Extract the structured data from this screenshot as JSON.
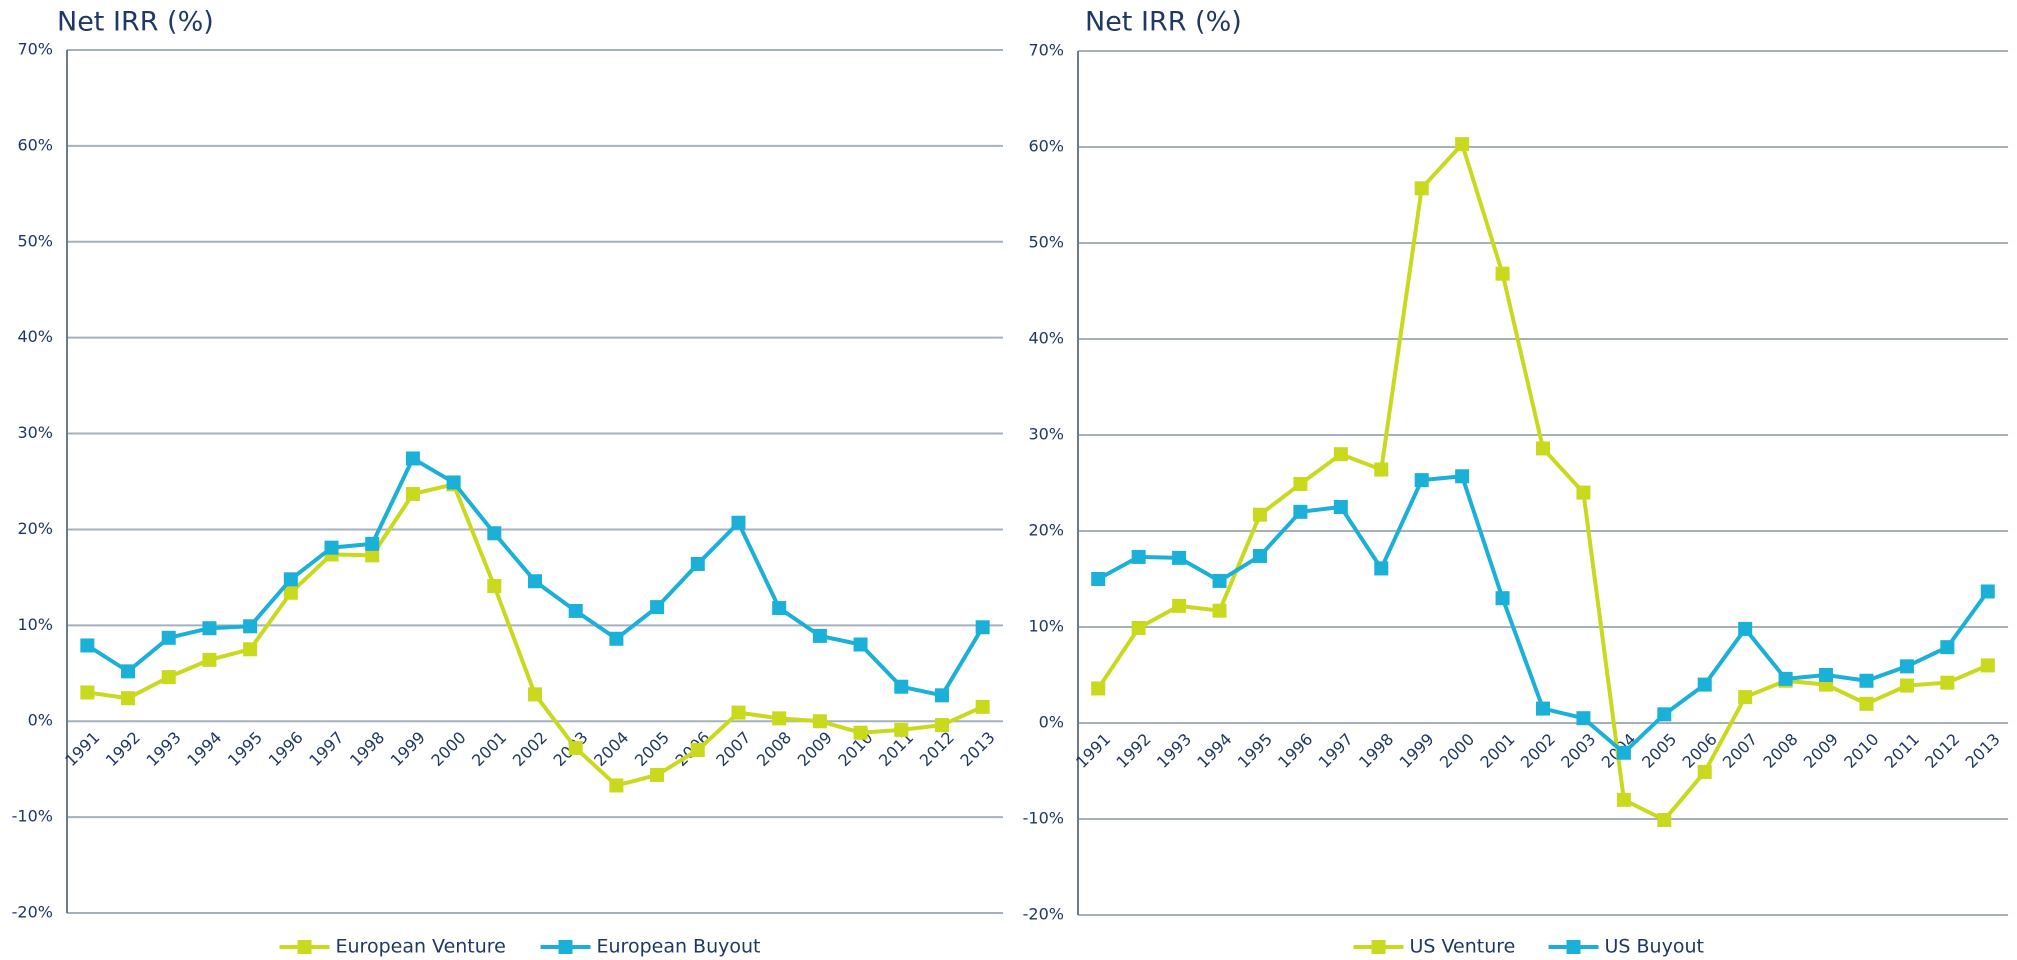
{
  "chart_data": [
    {
      "type": "line",
      "title": "Net IRR (%)",
      "categories": [
        "1991",
        "1992",
        "1993",
        "1994",
        "1995",
        "1996",
        "1997",
        "1998",
        "1999",
        "2000",
        "2001",
        "2002",
        "2003",
        "2004",
        "2005",
        "2006",
        "2007",
        "2008",
        "2009",
        "2010",
        "2011",
        "2012",
        "2013"
      ],
      "series": [
        {
          "name": "European Venture",
          "color": "#c8d91e",
          "values": [
            3.0,
            2.4,
            4.6,
            6.4,
            7.5,
            13.4,
            17.4,
            17.3,
            23.7,
            24.7,
            14.1,
            2.8,
            -2.8,
            -6.7,
            -5.6,
            -3.0,
            0.9,
            0.3,
            0.0,
            -1.2,
            -0.9,
            -0.4,
            1.5
          ]
        },
        {
          "name": "European Buyout",
          "color": "#1ab0d8",
          "values": [
            7.9,
            5.2,
            8.7,
            9.7,
            9.9,
            14.8,
            18.1,
            18.5,
            27.4,
            24.9,
            19.6,
            14.6,
            11.5,
            8.6,
            11.9,
            16.4,
            20.7,
            11.8,
            8.9,
            8.0,
            3.6,
            2.7,
            9.8
          ]
        }
      ],
      "ylim": [
        -20,
        70
      ],
      "yticks": [
        {
          "value": -20,
          "label": "-20%"
        },
        {
          "value": -10,
          "label": "-10%"
        },
        {
          "value": 0,
          "label": "0%"
        },
        {
          "value": 10,
          "label": "10%"
        },
        {
          "value": 20,
          "label": "20%"
        },
        {
          "value": 30,
          "label": "30%"
        },
        {
          "value": 40,
          "label": "40%"
        },
        {
          "value": 50,
          "label": "50%"
        },
        {
          "value": 60,
          "label": "60%"
        },
        {
          "value": 70,
          "label": "70%"
        }
      ],
      "grid": true,
      "legend": "bottom"
    },
    {
      "type": "line",
      "title": "Net IRR (%)",
      "categories": [
        "1991",
        "1992",
        "1993",
        "1994",
        "1995",
        "1996",
        "1997",
        "1998",
        "1999",
        "2000",
        "2001",
        "2002",
        "2003",
        "2004",
        "2005",
        "2006",
        "2007",
        "2008",
        "2009",
        "2010",
        "2011",
        "2012",
        "2013"
      ],
      "series": [
        {
          "name": "US Venture",
          "color": "#c8d91e",
          "values": [
            3.6,
            9.9,
            12.2,
            11.7,
            21.7,
            24.9,
            28.0,
            26.4,
            55.7,
            60.3,
            46.8,
            28.6,
            24.0,
            -8.0,
            -10.1,
            -5.1,
            2.7,
            4.4,
            4.0,
            2.0,
            3.9,
            4.2,
            6.0
          ]
        },
        {
          "name": "US Buyout",
          "color": "#1ab0d8",
          "values": [
            15.0,
            17.3,
            17.2,
            14.8,
            17.4,
            22.0,
            22.5,
            16.1,
            25.3,
            25.7,
            13.0,
            1.5,
            0.5,
            -3.1,
            0.9,
            4.0,
            9.8,
            4.6,
            5.0,
            4.4,
            5.9,
            7.9,
            13.7
          ]
        }
      ],
      "ylim": [
        -20,
        70
      ],
      "yticks": [
        {
          "value": -20,
          "label": "-20%"
        },
        {
          "value": -10,
          "label": "-10%"
        },
        {
          "value": 0,
          "label": "0%"
        },
        {
          "value": 10,
          "label": "10%"
        },
        {
          "value": 20,
          "label": "20%"
        },
        {
          "value": 30,
          "label": "30%"
        },
        {
          "value": 40,
          "label": "40%"
        },
        {
          "value": 50,
          "label": "50%"
        },
        {
          "value": 60,
          "label": "60%"
        },
        {
          "value": 70,
          "label": "70%"
        }
      ],
      "grid": true,
      "legend": "bottom"
    }
  ]
}
